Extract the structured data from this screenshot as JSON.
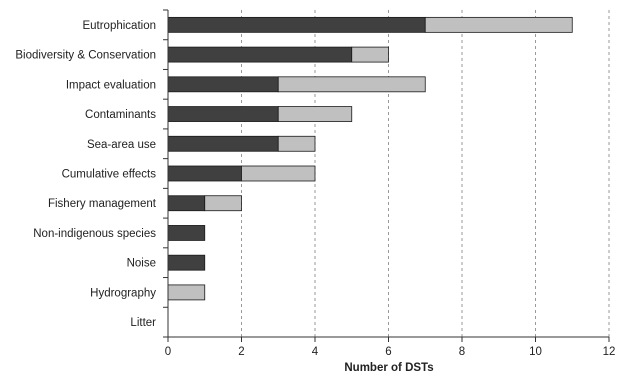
{
  "chart_data": {
    "type": "bar",
    "orientation": "horizontal",
    "stacked": true,
    "categories": [
      "Eutrophication",
      "Biodiversity & Conservation",
      "Impact evaluation",
      "Contaminants",
      "Sea-area use",
      "Cumulative effects",
      "Fishery management",
      "Non-indigenous species",
      "Noise",
      "Hydrography",
      "Litter"
    ],
    "series": [
      {
        "values": [
          7,
          5,
          3,
          3,
          3,
          2,
          1,
          1,
          1,
          0,
          0
        ],
        "color": "#404040"
      },
      {
        "values": [
          4,
          1,
          4,
          2,
          1,
          2,
          1,
          0,
          0,
          1,
          0
        ],
        "color": "#c0c0c0"
      }
    ],
    "xlabel": "Number of DSTs",
    "ylabel": "",
    "xlim": [
      0,
      12
    ],
    "xticks": [
      0,
      2,
      4,
      6,
      8,
      10,
      12
    ],
    "grid": "vertical dashed",
    "legend": "none"
  }
}
